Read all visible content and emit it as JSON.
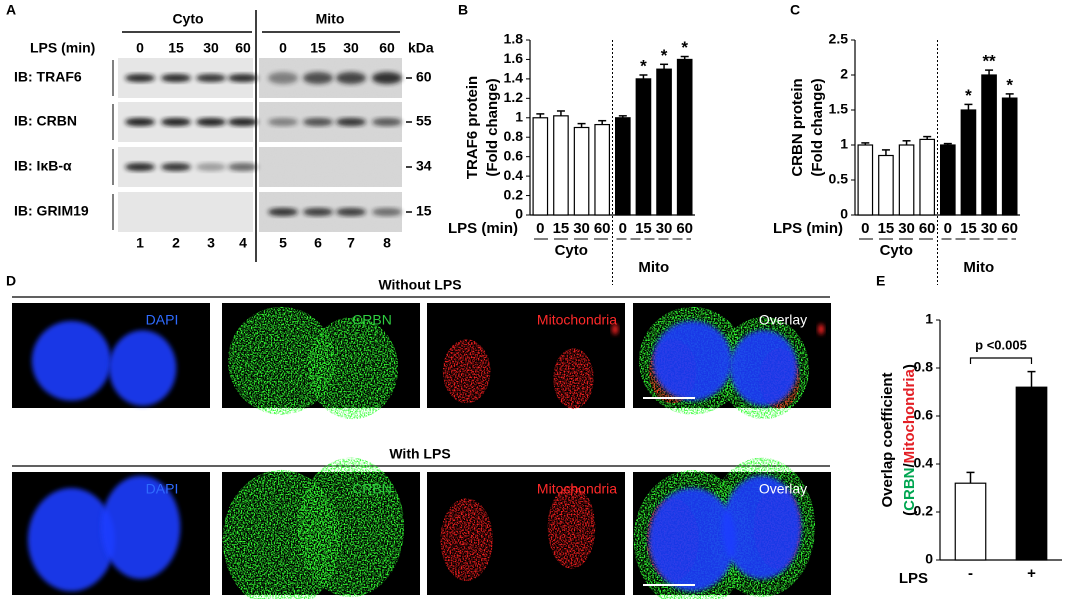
{
  "panel_labels": [
    "A",
    "B",
    "C",
    "D",
    "E"
  ],
  "panel_a": {
    "groups": [
      "Cyto",
      "Mito"
    ],
    "lps_label": "LPS (min)",
    "lanes": [
      "0",
      "15",
      "30",
      "60",
      "0",
      "15",
      "30",
      "60"
    ],
    "kda_label": "kDa",
    "rows": [
      {
        "label": "IB: TRAF6",
        "marker": "60"
      },
      {
        "label": "IB: CRBN",
        "marker": "55"
      },
      {
        "label": "IB: IκB-α",
        "marker": "34"
      },
      {
        "label": "IB: GRIM19",
        "marker": "15"
      }
    ],
    "lane_numbers": [
      "1",
      "2",
      "3",
      "4",
      "5",
      "6",
      "7",
      "8"
    ]
  },
  "chart_data": [
    {
      "type": "bar",
      "ylabel": [
        "TRAF6 protein",
        "(Fold change)"
      ],
      "xlabel": "LPS (min)",
      "categories": [
        "0",
        "15",
        "30",
        "60",
        "0",
        "15",
        "30",
        "60"
      ],
      "groups": [
        "Cyto",
        "Mito"
      ],
      "series": [
        {
          "color": "#ffffff",
          "values": [
            1.0,
            1.02,
            0.9,
            0.93,
            null,
            null,
            null,
            null
          ],
          "errors": [
            0.04,
            0.05,
            0.04,
            0.04,
            null,
            null,
            null,
            null
          ]
        },
        {
          "color": "#000000",
          "values": [
            null,
            null,
            null,
            null,
            1.0,
            1.4,
            1.5,
            1.6
          ],
          "errors": [
            null,
            null,
            null,
            null,
            0.02,
            0.04,
            0.05,
            0.03
          ],
          "significance": [
            null,
            null,
            null,
            null,
            null,
            "*",
            "*",
            "*"
          ]
        }
      ],
      "ylim": [
        0,
        1.8
      ],
      "yticks": [
        0,
        0.2,
        0.4,
        0.6,
        0.8,
        1,
        1.2,
        1.4,
        1.6,
        1.8
      ]
    },
    {
      "type": "bar",
      "ylabel": [
        "CRBN protein",
        "(Fold change)"
      ],
      "xlabel": "LPS (min)",
      "categories": [
        "0",
        "15",
        "30",
        "60",
        "0",
        "15",
        "30",
        "60"
      ],
      "groups": [
        "Cyto",
        "Mito"
      ],
      "series": [
        {
          "color": "#ffffff",
          "values": [
            1.0,
            0.85,
            1.0,
            1.08,
            null,
            null,
            null,
            null
          ],
          "errors": [
            0.03,
            0.08,
            0.06,
            0.04,
            null,
            null,
            null,
            null
          ]
        },
        {
          "color": "#000000",
          "values": [
            null,
            null,
            null,
            null,
            1.0,
            1.5,
            2.0,
            1.67
          ],
          "errors": [
            null,
            null,
            null,
            null,
            0.02,
            0.08,
            0.07,
            0.06
          ],
          "significance": [
            null,
            null,
            null,
            null,
            null,
            "*",
            "**",
            "*"
          ]
        }
      ],
      "ylim": [
        0,
        2.5
      ],
      "yticks": [
        0,
        0.5,
        1,
        1.5,
        2,
        2.5
      ]
    },
    {
      "type": "bar",
      "ylabel": "Overlap coefficient",
      "ylabel_parts": [
        "(",
        "CRBN",
        "/",
        "Mitochondria",
        ")"
      ],
      "ylabel_colors": [
        "#000000",
        "#00a651",
        "#000000",
        "#e31e24",
        "#000000"
      ],
      "xlabel": "LPS",
      "categories": [
        "-",
        "+"
      ],
      "values": [
        0.32,
        0.72
      ],
      "errors": [
        0.045,
        0.065
      ],
      "colors": [
        "#ffffff",
        "#000000"
      ],
      "annotation": "p <0.005",
      "ylim": [
        0,
        1
      ],
      "yticks": [
        0,
        0.2,
        0.4,
        0.6,
        0.8,
        1
      ]
    }
  ],
  "panel_d": {
    "rows": [
      {
        "title": "Without LPS",
        "channels": [
          "DAPI",
          "CRBN",
          "Mitochondria",
          "Overlay"
        ]
      },
      {
        "title": "With LPS",
        "channels": [
          "DAPI",
          "CRBN",
          "Mitochondria",
          "Overlay"
        ]
      }
    ]
  }
}
